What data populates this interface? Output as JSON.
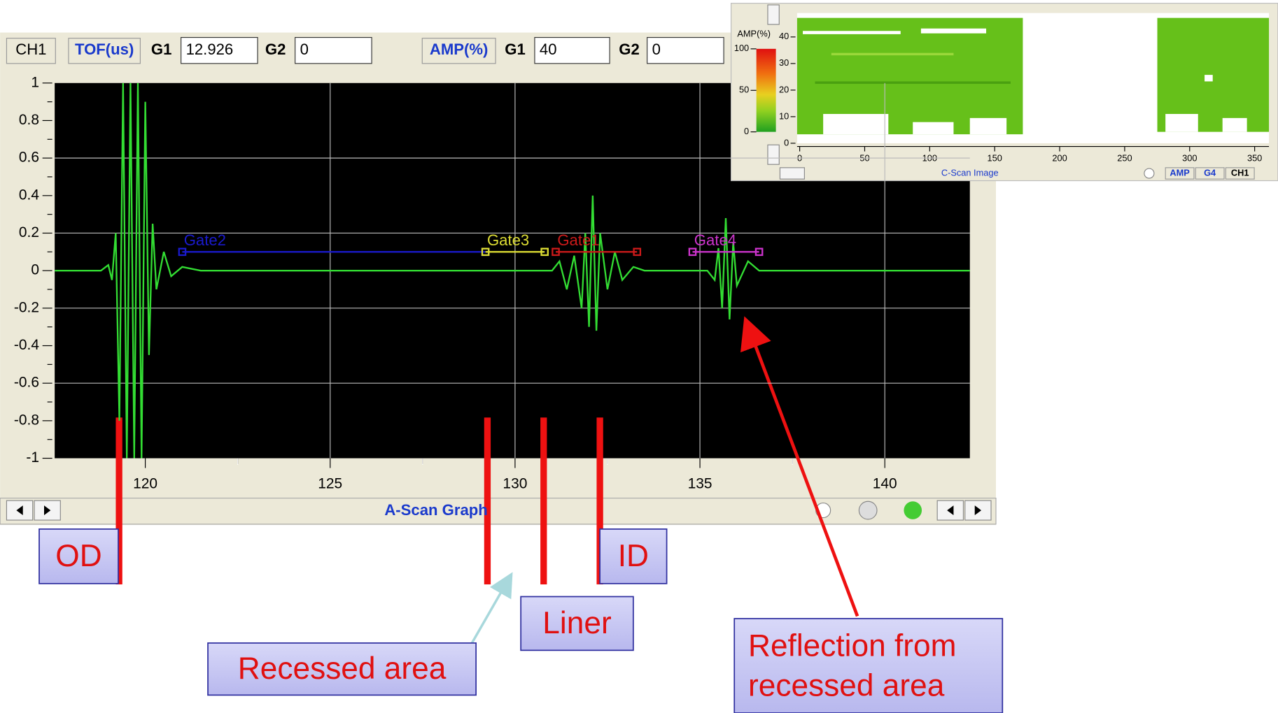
{
  "toolbar": {
    "channel": "CH1",
    "tof_label": "TOF(us)",
    "tof_g1_label": "G1",
    "tof_g1": "12.926",
    "tof_g2_label": "G2",
    "tof_g2": "0",
    "amp_label": "AMP(%)",
    "amp_g1_label": "G1",
    "amp_g1": "40",
    "amp_g2_label": "G2",
    "amp_g2": "0"
  },
  "a_scan": {
    "title": "A-Scan Graph",
    "xlim": [
      117.55,
      142.3
    ],
    "ylim": [
      -1,
      1
    ],
    "xticks": [
      120,
      125,
      130,
      135,
      140
    ],
    "yticks": [
      1,
      0.8,
      0.6,
      0.4,
      0.2,
      0,
      -0.2,
      -0.4,
      -0.6,
      -0.8,
      -1
    ],
    "color": "#33dd33",
    "waveform": {
      "x": [
        117.55,
        118.8,
        119.0,
        119.1,
        119.2,
        119.3,
        119.4,
        119.5,
        119.6,
        119.7,
        119.8,
        119.9,
        120.0,
        120.1,
        120.2,
        120.3,
        120.5,
        120.7,
        121.0,
        121.5,
        131.0,
        131.2,
        131.4,
        131.6,
        131.8,
        131.9,
        132.0,
        132.1,
        132.2,
        132.3,
        132.5,
        132.7,
        132.9,
        133.2,
        133.5,
        135.2,
        135.4,
        135.5,
        135.6,
        135.7,
        135.8,
        135.9,
        136.0,
        136.3,
        136.6,
        142.3
      ],
      "y": [
        0,
        0,
        0.03,
        -0.05,
        0.2,
        -0.8,
        1,
        -1,
        1,
        -1,
        1,
        -1,
        0.9,
        -0.45,
        0.25,
        -0.1,
        0.1,
        -0.03,
        0.02,
        0,
        0,
        0.05,
        -0.1,
        0.08,
        -0.2,
        0.2,
        -0.3,
        0.4,
        -0.32,
        0.2,
        -0.1,
        0.1,
        -0.05,
        0.02,
        0,
        0,
        -0.05,
        0.12,
        -0.2,
        0.28,
        -0.26,
        0.15,
        -0.08,
        0.05,
        0,
        0
      ]
    },
    "gates": [
      {
        "name": "Gate2",
        "color": "#1a1acc",
        "start": 121,
        "end": 129.2,
        "level": 0.1
      },
      {
        "name": "Gate3",
        "color": "#dddd33",
        "start": 129.2,
        "end": 130.8,
        "level": 0.1
      },
      {
        "name": "Gate1",
        "color": "#cc1a1a",
        "start": 131.1,
        "end": 133.3,
        "level": 0.1
      },
      {
        "name": "Gate4",
        "color": "#cc33cc",
        "start": 134.8,
        "end": 136.6,
        "level": 0.1
      }
    ]
  },
  "c_scan": {
    "title": "C-Scan Image",
    "colorbar_label": "AMP(%)",
    "colorbar_lim": [
      0,
      100
    ],
    "colorbar_ticks": [
      100,
      50,
      0
    ],
    "xlim": [
      -2,
      361
    ],
    "ylim": [
      0,
      49
    ],
    "xticks": [
      0,
      50,
      100,
      150,
      200,
      250,
      300,
      350
    ],
    "yticks": [
      40,
      30,
      20,
      10,
      0
    ],
    "buttons": [
      "AMP",
      "G4",
      "CH1"
    ]
  },
  "annotations": {
    "od": "OD",
    "id": "ID",
    "liner": "Liner",
    "recessed": "Recessed area",
    "reflection": [
      "Reflection from",
      "recessed area"
    ]
  }
}
